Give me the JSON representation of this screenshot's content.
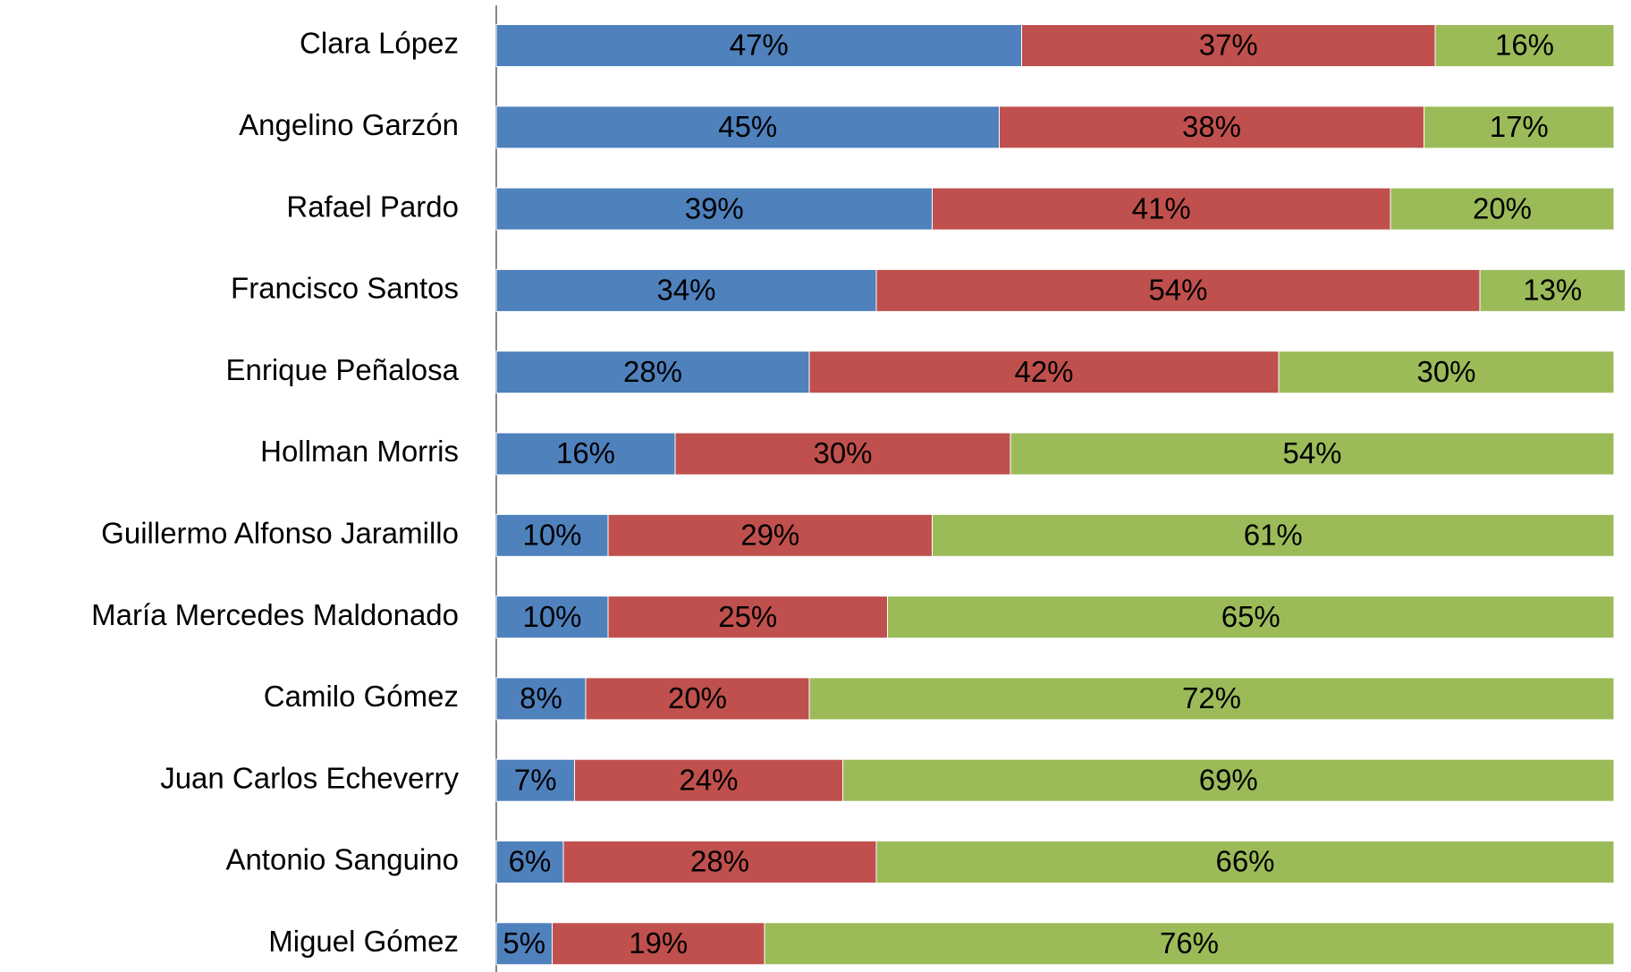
{
  "chart_data": {
    "type": "stacked_barh",
    "categories": [
      "Clara López",
      "Angelino Garzón",
      "Rafael Pardo",
      "Francisco Santos",
      "Enrique Peñalosa",
      "Hollman Morris",
      "Guillermo Alfonso Jaramillo",
      "María Mercedes Maldonado",
      "Camilo Gómez",
      "Juan Carlos Echeverry",
      "Antonio Sanguino",
      "Miguel Gómez"
    ],
    "series": [
      {
        "color": "#4f81bd",
        "values": [
          47,
          45,
          39,
          34,
          28,
          16,
          10,
          10,
          8,
          7,
          6,
          5
        ],
        "value_labels": [
          "47%",
          "45%",
          "39%",
          "34%",
          "28%",
          "16%",
          "10%",
          "10%",
          "8%",
          "7%",
          "6%",
          "5%"
        ]
      },
      {
        "color": "#c0504d",
        "values": [
          37,
          38,
          41,
          54,
          42,
          30,
          29,
          25,
          20,
          24,
          28,
          19
        ],
        "value_labels": [
          "37%",
          "38%",
          "41%",
          "54%",
          "42%",
          "30%",
          "29%",
          "25%",
          "20%",
          "24%",
          "28%",
          "19%"
        ]
      },
      {
        "color": "#9bbb59",
        "values": [
          16,
          17,
          20,
          13,
          30,
          54,
          61,
          65,
          72,
          69,
          66,
          76
        ],
        "value_labels": [
          "16%",
          "17%",
          "20%",
          "13%",
          "30%",
          "54%",
          "61%",
          "65%",
          "72%",
          "69%",
          "66%",
          "76%"
        ]
      }
    ],
    "xlim": [
      0,
      100
    ]
  }
}
